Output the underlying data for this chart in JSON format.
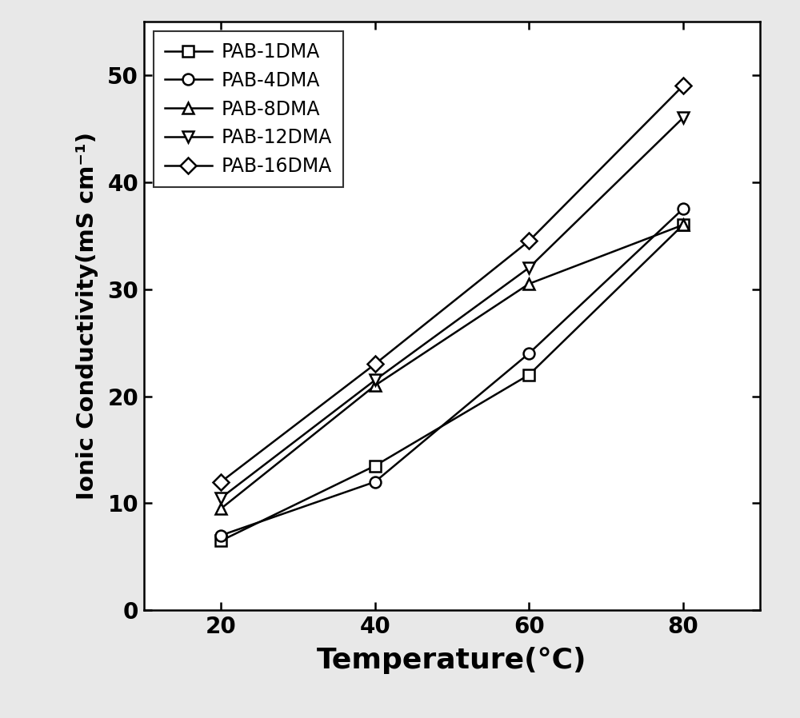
{
  "x": [
    20,
    40,
    60,
    80
  ],
  "series": [
    {
      "label": "PAB-1DMA",
      "y": [
        6.5,
        13.5,
        22.0,
        36.0
      ],
      "marker": "s",
      "markersize": 10
    },
    {
      "label": "PAB-4DMA",
      "y": [
        7.0,
        12.0,
        24.0,
        37.5
      ],
      "marker": "o",
      "markersize": 10
    },
    {
      "label": "PAB-8DMA",
      "y": [
        9.5,
        21.0,
        30.5,
        36.0
      ],
      "marker": "^",
      "markersize": 10
    },
    {
      "label": "PAB-12DMA",
      "y": [
        10.5,
        21.5,
        32.0,
        46.0
      ],
      "marker": "v",
      "markersize": 10
    },
    {
      "label": "PAB-16DMA",
      "y": [
        12.0,
        23.0,
        34.5,
        49.0
      ],
      "marker": "D",
      "markersize": 10
    }
  ],
  "xlabel": "Temperature(°C)",
  "ylabel": "Ionic Conductivity(mS cm⁻¹)",
  "xlim": [
    10,
    90
  ],
  "ylim": [
    0,
    55
  ],
  "yticks": [
    0,
    10,
    20,
    30,
    40,
    50
  ],
  "xticks": [
    20,
    40,
    60,
    80
  ],
  "line_color": "black",
  "linewidth": 1.8,
  "outer_bg": "#e8e8e8",
  "inner_bg": "white",
  "legend_loc": "upper left",
  "xlabel_fontsize": 26,
  "ylabel_fontsize": 21,
  "tick_fontsize": 20,
  "legend_fontsize": 17,
  "markersize": 10,
  "markeredgewidth": 1.8
}
